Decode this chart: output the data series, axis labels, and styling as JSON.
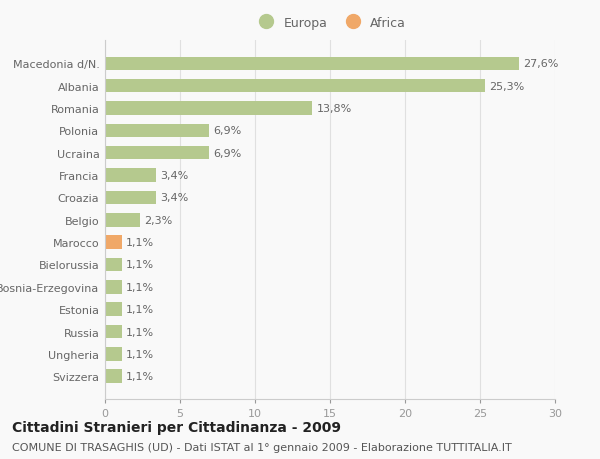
{
  "categories": [
    "Svizzera",
    "Ungheria",
    "Russia",
    "Estonia",
    "Bosnia-Erzegovina",
    "Bielorussia",
    "Marocco",
    "Belgio",
    "Croazia",
    "Francia",
    "Ucraina",
    "Polonia",
    "Romania",
    "Albania",
    "Macedonia d/N."
  ],
  "values": [
    1.1,
    1.1,
    1.1,
    1.1,
    1.1,
    1.1,
    1.1,
    2.3,
    3.4,
    3.4,
    6.9,
    6.9,
    13.8,
    25.3,
    27.6
  ],
  "labels": [
    "1,1%",
    "1,1%",
    "1,1%",
    "1,1%",
    "1,1%",
    "1,1%",
    "1,1%",
    "2,3%",
    "3,4%",
    "3,4%",
    "6,9%",
    "6,9%",
    "13,8%",
    "25,3%",
    "27,6%"
  ],
  "colors": [
    "#b5c98e",
    "#b5c98e",
    "#b5c98e",
    "#b5c98e",
    "#b5c98e",
    "#b5c98e",
    "#f0a868",
    "#b5c98e",
    "#b5c98e",
    "#b5c98e",
    "#b5c98e",
    "#b5c98e",
    "#b5c98e",
    "#b5c98e",
    "#b5c98e"
  ],
  "legend_europa_color": "#b5c98e",
  "legend_africa_color": "#f0a868",
  "xlim": [
    0,
    30
  ],
  "xticks": [
    0,
    5,
    10,
    15,
    20,
    25,
    30
  ],
  "title": "Cittadini Stranieri per Cittadinanza - 2009",
  "subtitle": "COMUNE DI TRASAGHIS (UD) - Dati ISTAT al 1° gennaio 2009 - Elaborazione TUTTITALIA.IT",
  "background_color": "#f9f9f9",
  "bar_height": 0.6,
  "title_fontsize": 10,
  "subtitle_fontsize": 8,
  "label_fontsize": 8,
  "tick_fontsize": 8,
  "legend_fontsize": 9
}
